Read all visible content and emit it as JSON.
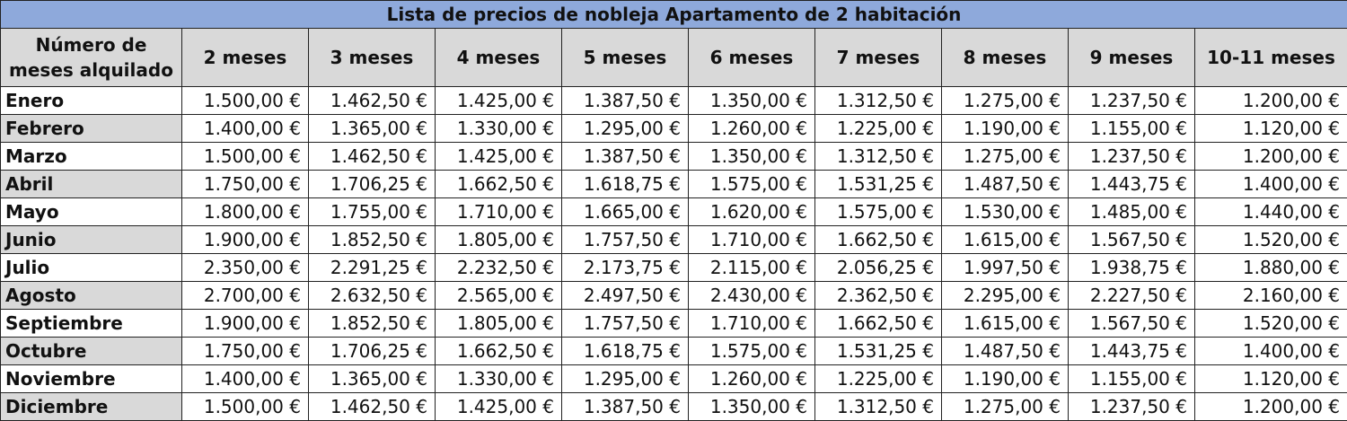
{
  "title": "Lista de precios de nobleja Apartamento de 2 habitación",
  "corner_header": "Número de meses alquilado",
  "durations": [
    "2 meses",
    "3 meses",
    "4 meses",
    "5 meses",
    "6 meses",
    "7 meses",
    "8 meses",
    "9 meses",
    "10-11 meses"
  ],
  "rows": [
    {
      "month": "Enero",
      "prices": [
        "1.500,00 €",
        "1.462,50 €",
        "1.425,00 €",
        "1.387,50 €",
        "1.350,00 €",
        "1.312,50 €",
        "1.275,00 €",
        "1.237,50 €",
        "1.200,00 €"
      ]
    },
    {
      "month": "Febrero",
      "prices": [
        "1.400,00 €",
        "1.365,00 €",
        "1.330,00 €",
        "1.295,00 €",
        "1.260,00 €",
        "1.225,00 €",
        "1.190,00 €",
        "1.155,00 €",
        "1.120,00 €"
      ]
    },
    {
      "month": "Marzo",
      "prices": [
        "1.500,00 €",
        "1.462,50 €",
        "1.425,00 €",
        "1.387,50 €",
        "1.350,00 €",
        "1.312,50 €",
        "1.275,00 €",
        "1.237,50 €",
        "1.200,00 €"
      ]
    },
    {
      "month": "Abril",
      "prices": [
        "1.750,00 €",
        "1.706,25 €",
        "1.662,50 €",
        "1.618,75 €",
        "1.575,00 €",
        "1.531,25 €",
        "1.487,50 €",
        "1.443,75 €",
        "1.400,00 €"
      ]
    },
    {
      "month": "Mayo",
      "prices": [
        "1.800,00 €",
        "1.755,00 €",
        "1.710,00 €",
        "1.665,00 €",
        "1.620,00 €",
        "1.575,00 €",
        "1.530,00 €",
        "1.485,00 €",
        "1.440,00 €"
      ]
    },
    {
      "month": "Junio",
      "prices": [
        "1.900,00 €",
        "1.852,50 €",
        "1.805,00 €",
        "1.757,50 €",
        "1.710,00 €",
        "1.662,50 €",
        "1.615,00 €",
        "1.567,50 €",
        "1.520,00 €"
      ]
    },
    {
      "month": "Julio",
      "prices": [
        "2.350,00 €",
        "2.291,25 €",
        "2.232,50 €",
        "2.173,75 €",
        "2.115,00 €",
        "2.056,25 €",
        "1.997,50 €",
        "1.938,75 €",
        "1.880,00 €"
      ]
    },
    {
      "month": "Agosto",
      "prices": [
        "2.700,00 €",
        "2.632,50 €",
        "2.565,00 €",
        "2.497,50 €",
        "2.430,00 €",
        "2.362,50 €",
        "2.295,00 €",
        "2.227,50 €",
        "2.160,00 €"
      ]
    },
    {
      "month": "Septiembre",
      "prices": [
        "1.900,00 €",
        "1.852,50 €",
        "1.805,00 €",
        "1.757,50 €",
        "1.710,00 €",
        "1.662,50 €",
        "1.615,00 €",
        "1.567,50 €",
        "1.520,00 €"
      ]
    },
    {
      "month": "Octubre",
      "prices": [
        "1.750,00 €",
        "1.706,25 €",
        "1.662,50 €",
        "1.618,75 €",
        "1.575,00 €",
        "1.531,25 €",
        "1.487,50 €",
        "1.443,75 €",
        "1.400,00 €"
      ]
    },
    {
      "month": "Noviembre",
      "prices": [
        "1.400,00 €",
        "1.365,00 €",
        "1.330,00 €",
        "1.295,00 €",
        "1.260,00 €",
        "1.225,00 €",
        "1.190,00 €",
        "1.155,00 €",
        "1.120,00 €"
      ]
    },
    {
      "month": "Diciembre",
      "prices": [
        "1.500,00 €",
        "1.462,50 €",
        "1.425,00 €",
        "1.387,50 €",
        "1.350,00 €",
        "1.312,50 €",
        "1.275,00 €",
        "1.237,50 €",
        "1.200,00 €"
      ]
    }
  ]
}
